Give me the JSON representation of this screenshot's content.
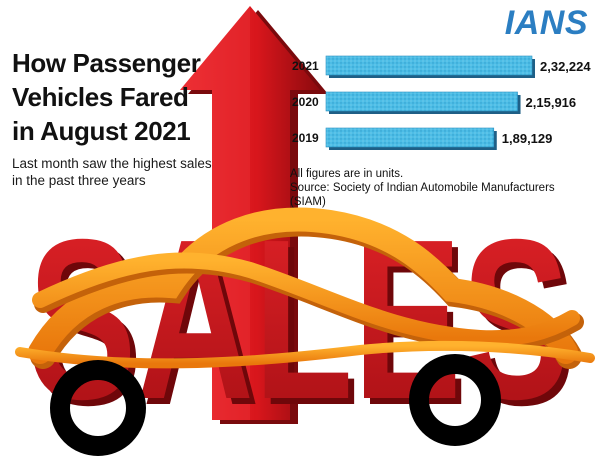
{
  "brand": {
    "logo_text": "IANS",
    "logo_color": "#2b7ec2"
  },
  "headline": "How Passenger Vehicles Fared in August 2021",
  "subhead": "Last month saw the highest sales in the past three years",
  "illustration": {
    "word": "SALES",
    "arrow_color": "#d8161c",
    "letter_color": "#c4141a",
    "car_outline_color": "#f08a10",
    "wheel_color": "#000000"
  },
  "notes": {
    "units": "All figures are in units.",
    "source": "Source: Society of Indian Automobile Manufacturers (SIAM)"
  },
  "chart_data": {
    "type": "bar",
    "orientation": "horizontal",
    "categories": [
      "2021",
      "2020",
      "2019"
    ],
    "values": [
      232224,
      215916,
      189129
    ],
    "value_labels": [
      "2,32,224",
      "2,15,916",
      "1,89,129"
    ],
    "bar_color": "#4dbde6",
    "title": "",
    "xlabel": "",
    "ylabel": "",
    "grid": false,
    "legend": "none"
  }
}
